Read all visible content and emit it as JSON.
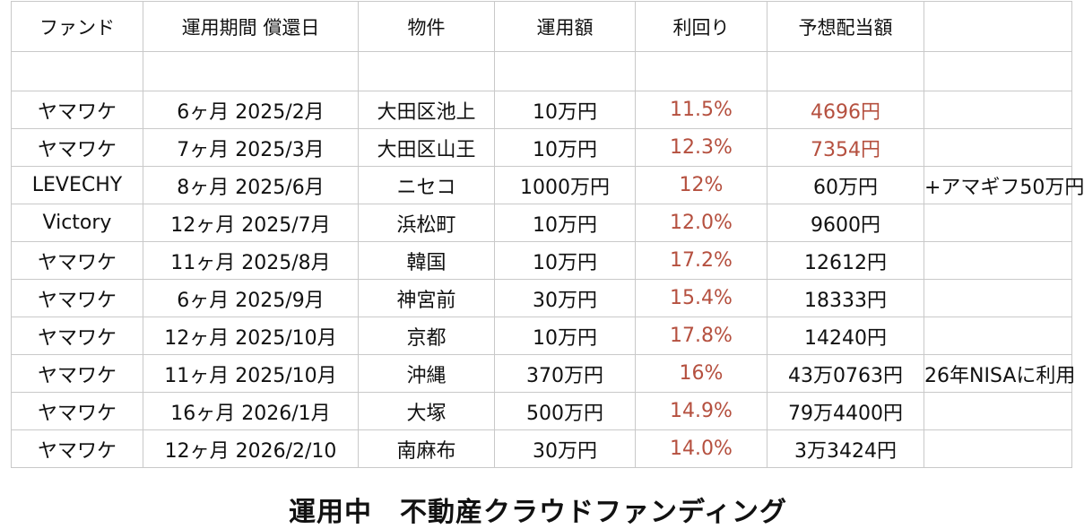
{
  "table": {
    "headers": [
      "ファンド",
      "運用期間 償還日",
      "物件",
      "運用額",
      "利回り",
      "予想配当額",
      ""
    ],
    "rows": [
      {
        "fund": "ヤマワケ",
        "term": "6ヶ月 2025/2月",
        "property": "大田区池上",
        "amount": "10万円",
        "rate": "11.5%",
        "dividend": "4696円",
        "note": ""
      },
      {
        "fund": "ヤマワケ",
        "term": "7ヶ月 2025/3月",
        "property": "大田区山王",
        "amount": "10万円",
        "rate": "12.3%",
        "dividend": "7354円",
        "note": ""
      },
      {
        "fund": "LEVECHY",
        "term": "8ヶ月 2025/6月",
        "property": "ニセコ",
        "amount": "1000万円",
        "rate": "12%",
        "dividend": "60万円",
        "note": "+アマギフ50万円"
      },
      {
        "fund": "Victory",
        "term": "12ヶ月 2025/7月",
        "property": "浜松町",
        "amount": "10万円",
        "rate": "12.0%",
        "dividend": "9600円",
        "note": ""
      },
      {
        "fund": "ヤマワケ",
        "term": "11ヶ月 2025/8月",
        "property": "韓国",
        "amount": "10万円",
        "rate": "17.2%",
        "dividend": "12612円",
        "note": ""
      },
      {
        "fund": "ヤマワケ",
        "term": "6ヶ月 2025/9月",
        "property": "神宮前",
        "amount": "30万円",
        "rate": "15.4%",
        "dividend": "18333円",
        "note": ""
      },
      {
        "fund": "ヤマワケ",
        "term": "12ヶ月 2025/10月",
        "property": "京都",
        "amount": "10万円",
        "rate": "17.8%",
        "dividend": "14240円",
        "note": ""
      },
      {
        "fund": "ヤマワケ",
        "term": "11ヶ月 2025/10月",
        "property": "沖縄",
        "amount": "370万円",
        "rate": "16%",
        "dividend": "43万0763円",
        "note": "26年NISAに利用"
      },
      {
        "fund": "ヤマワケ",
        "term": "16ヶ月 2026/1月",
        "property": "大塚",
        "amount": "500万円",
        "rate": "14.9%",
        "dividend": "79万4400円",
        "note": ""
      },
      {
        "fund": "ヤマワケ",
        "term": "12ヶ月 2026/2/10",
        "property": "南麻布",
        "amount": "30万円",
        "rate": "14.0%",
        "dividend": "3万3424円",
        "note": ""
      }
    ]
  },
  "caption": "運用中　不動産クラウドファンディング",
  "colors": {
    "rate_text": "#b5503f",
    "grid_line": "#c9c9c9",
    "text": "#111111"
  }
}
